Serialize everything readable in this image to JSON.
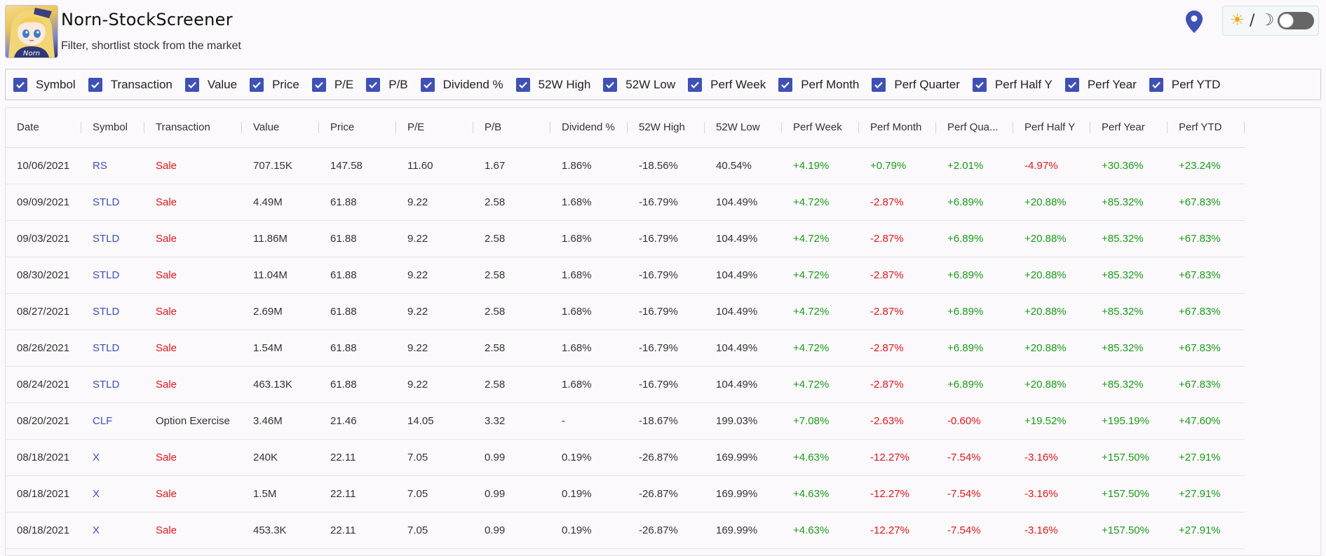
{
  "header": {
    "title": "Norn-StockScreener",
    "subtitle": "Filter, shortlist stock from the market",
    "theme_sun": "☀",
    "theme_slash": "/",
    "theme_moon": "☽",
    "logo_text": "Norn"
  },
  "colors": {
    "accent": "#3f51b5",
    "positive": "#1b9a1b",
    "negative": "#e0161b"
  },
  "filters": [
    {
      "label": "Symbol",
      "checked": true
    },
    {
      "label": "Transaction",
      "checked": true
    },
    {
      "label": "Value",
      "checked": true
    },
    {
      "label": "Price",
      "checked": true
    },
    {
      "label": "P/E",
      "checked": true
    },
    {
      "label": "P/B",
      "checked": true
    },
    {
      "label": "Dividend %",
      "checked": true
    },
    {
      "label": "52W High",
      "checked": true
    },
    {
      "label": "52W Low",
      "checked": true
    },
    {
      "label": "Perf Week",
      "checked": true
    },
    {
      "label": "Perf Month",
      "checked": true
    },
    {
      "label": "Perf Quarter",
      "checked": true
    },
    {
      "label": "Perf Half Y",
      "checked": true
    },
    {
      "label": "Perf Year",
      "checked": true
    },
    {
      "label": "Perf YTD",
      "checked": true
    }
  ],
  "table": {
    "columns": [
      "Date",
      "Symbol",
      "Transaction",
      "Value",
      "Price",
      "P/E",
      "P/B",
      "Dividend %",
      "52W High",
      "52W Low",
      "Perf Week",
      "Perf Month",
      "Perf Qua...",
      "Perf Half Y",
      "Perf Year",
      "Perf YTD"
    ],
    "rows": [
      [
        "10/06/2021",
        "RS",
        "Sale",
        "707.15K",
        "147.58",
        "11.60",
        "1.67",
        "1.86%",
        "-18.56%",
        "40.54%",
        "+4.19%",
        "+0.79%",
        "+2.01%",
        "-4.97%",
        "+30.36%",
        "+23.24%"
      ],
      [
        "09/09/2021",
        "STLD",
        "Sale",
        "4.49M",
        "61.88",
        "9.22",
        "2.58",
        "1.68%",
        "-16.79%",
        "104.49%",
        "+4.72%",
        "-2.87%",
        "+6.89%",
        "+20.88%",
        "+85.32%",
        "+67.83%"
      ],
      [
        "09/03/2021",
        "STLD",
        "Sale",
        "11.86M",
        "61.88",
        "9.22",
        "2.58",
        "1.68%",
        "-16.79%",
        "104.49%",
        "+4.72%",
        "-2.87%",
        "+6.89%",
        "+20.88%",
        "+85.32%",
        "+67.83%"
      ],
      [
        "08/30/2021",
        "STLD",
        "Sale",
        "11.04M",
        "61.88",
        "9.22",
        "2.58",
        "1.68%",
        "-16.79%",
        "104.49%",
        "+4.72%",
        "-2.87%",
        "+6.89%",
        "+20.88%",
        "+85.32%",
        "+67.83%"
      ],
      [
        "08/27/2021",
        "STLD",
        "Sale",
        "2.69M",
        "61.88",
        "9.22",
        "2.58",
        "1.68%",
        "-16.79%",
        "104.49%",
        "+4.72%",
        "-2.87%",
        "+6.89%",
        "+20.88%",
        "+85.32%",
        "+67.83%"
      ],
      [
        "08/26/2021",
        "STLD",
        "Sale",
        "1.54M",
        "61.88",
        "9.22",
        "2.58",
        "1.68%",
        "-16.79%",
        "104.49%",
        "+4.72%",
        "-2.87%",
        "+6.89%",
        "+20.88%",
        "+85.32%",
        "+67.83%"
      ],
      [
        "08/24/2021",
        "STLD",
        "Sale",
        "463.13K",
        "61.88",
        "9.22",
        "2.58",
        "1.68%",
        "-16.79%",
        "104.49%",
        "+4.72%",
        "-2.87%",
        "+6.89%",
        "+20.88%",
        "+85.32%",
        "+67.83%"
      ],
      [
        "08/20/2021",
        "CLF",
        "Option Exercise",
        "3.46M",
        "21.46",
        "14.05",
        "3.32",
        "-",
        "-18.67%",
        "199.03%",
        "+7.08%",
        "-2.63%",
        "-0.60%",
        "+19.52%",
        "+195.19%",
        "+47.60%"
      ],
      [
        "08/18/2021",
        "X",
        "Sale",
        "240K",
        "22.11",
        "7.05",
        "0.99",
        "0.19%",
        "-26.87%",
        "169.99%",
        "+4.63%",
        "-12.27%",
        "-7.54%",
        "-3.16%",
        "+157.50%",
        "+27.91%"
      ],
      [
        "08/18/2021",
        "X",
        "Sale",
        "1.5M",
        "22.11",
        "7.05",
        "0.99",
        "0.19%",
        "-26.87%",
        "169.99%",
        "+4.63%",
        "-12.27%",
        "-7.54%",
        "-3.16%",
        "+157.50%",
        "+27.91%"
      ],
      [
        "08/18/2021",
        "X",
        "Sale",
        "453.3K",
        "22.11",
        "7.05",
        "0.99",
        "0.19%",
        "-26.87%",
        "169.99%",
        "+4.63%",
        "-12.27%",
        "-7.54%",
        "-3.16%",
        "+157.50%",
        "+27.91%"
      ]
    ]
  }
}
